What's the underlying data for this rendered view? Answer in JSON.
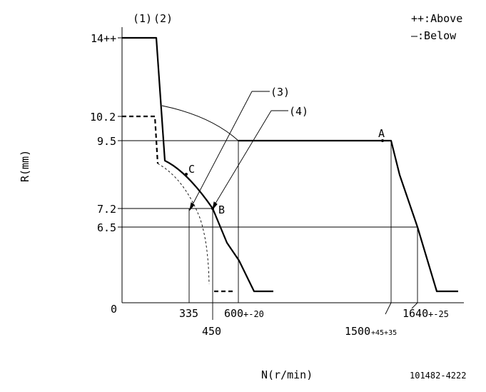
{
  "legend": {
    "above": "++:Above",
    "below": "—:Below"
  },
  "y_axis_label": "R(mm)",
  "x_axis_label": "N(r/min)",
  "figure_id": "101482-4222",
  "top_labels": {
    "l1": "(1)",
    "l2": "(2)"
  },
  "callouts": {
    "c3": "(3)",
    "c4": "(4)"
  },
  "points": {
    "A": "A",
    "B": "B",
    "C": "C"
  },
  "y_ticks": {
    "t14": "14++",
    "t10_2": "10.2",
    "t9_5": "9.5",
    "t7_2": "7.2",
    "t6_5": "6.5",
    "t0": "0"
  },
  "x_ticks": {
    "x335": "335",
    "x450": "450",
    "x600_main": "600",
    "x600_tol": "+-20",
    "x1500_main": "1500",
    "x1500_tol": "+45+35",
    "x1640_main": "1640",
    "x1640_tol": "+-25"
  }
}
